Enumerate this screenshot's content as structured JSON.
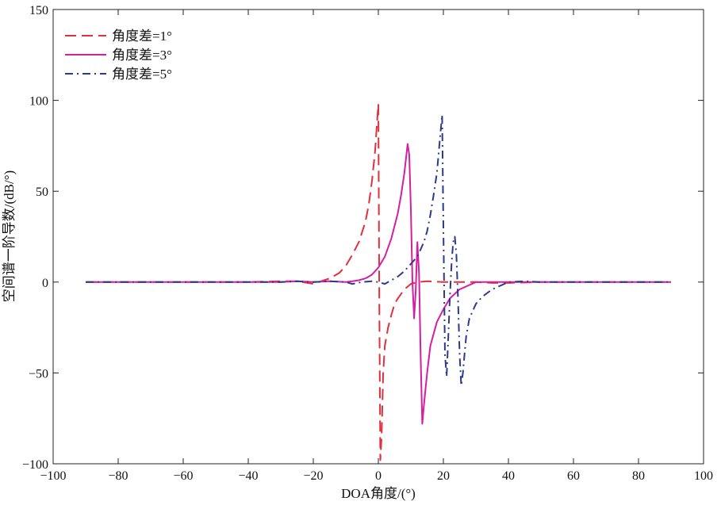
{
  "chart_data": {
    "type": "line",
    "xlabel": "DOA角度/(°)",
    "ylabel": "空间谱一阶导数/(dB/°)",
    "xlim": [
      -100,
      100
    ],
    "ylim": [
      -100,
      150
    ],
    "xticks": [
      -100,
      -80,
      -60,
      -40,
      -20,
      0,
      20,
      40,
      60,
      80,
      100
    ],
    "yticks": [
      -100,
      -50,
      0,
      50,
      100,
      150
    ],
    "grid": false,
    "legend_position": "top-left",
    "series": [
      {
        "name": "角度差=1°",
        "color": "#e0303c",
        "dash": "dashed",
        "x": [
          -90,
          -60,
          -40,
          -30,
          -25,
          -20,
          -15,
          -12,
          -10,
          -8,
          -6,
          -4,
          -3,
          -2,
          -1,
          -0.5,
          0,
          0.3,
          0.6,
          1,
          1.5,
          2,
          3,
          4,
          5,
          6,
          8,
          10,
          12,
          15,
          20,
          25,
          30,
          35,
          40,
          50,
          60,
          70,
          80,
          90
        ],
        "y": [
          0,
          0,
          0,
          0.5,
          0.5,
          -1,
          2,
          5,
          9,
          15,
          22,
          33,
          42,
          55,
          72,
          85,
          98,
          -10,
          -98,
          -85,
          -50,
          -35,
          -25,
          -18,
          -12,
          -9,
          -4,
          -1,
          0,
          0.5,
          0,
          0,
          0,
          -0.5,
          -0.5,
          0,
          0,
          0,
          0,
          0
        ]
      },
      {
        "name": "角度差=3°",
        "color": "#d61fa0",
        "dash": "solid",
        "x": [
          -90,
          -60,
          -40,
          -30,
          -25,
          -20,
          -15,
          -10,
          -8,
          -6,
          -4,
          -2,
          0,
          2,
          4,
          6,
          7,
          8,
          9,
          9.5,
          10,
          10.5,
          11,
          11.5,
          12,
          12.5,
          13,
          13.5,
          14,
          15,
          16,
          18,
          20,
          22,
          25,
          30,
          35,
          40,
          50,
          60,
          70,
          80,
          90
        ],
        "y": [
          0,
          0,
          0,
          0,
          0.5,
          0,
          0.5,
          0,
          0.5,
          1,
          2,
          4,
          8,
          14,
          24,
          38,
          48,
          60,
          76,
          70,
          40,
          0,
          -20,
          -5,
          22,
          5,
          -40,
          -78,
          -68,
          -50,
          -35,
          -22,
          -15,
          -9,
          -4,
          0,
          0,
          0,
          0,
          0,
          0,
          0,
          0
        ]
      },
      {
        "name": "角度差=5°",
        "color": "#2b3a8c",
        "dash": "dashdot",
        "x": [
          -90,
          -60,
          -40,
          -30,
          -25,
          -20,
          -15,
          -10,
          -8,
          -5,
          -2,
          0,
          2,
          4,
          6,
          8,
          10,
          12,
          14,
          15,
          16,
          17,
          18,
          19,
          19.6,
          20,
          20.5,
          21,
          21.5,
          22,
          22.5,
          23,
          23.5,
          24,
          24.5,
          25,
          25.5,
          26,
          26.5,
          27,
          28,
          30,
          32,
          35,
          40,
          45,
          50,
          60,
          70,
          80,
          90
        ],
        "y": [
          0,
          0,
          0,
          0,
          0.5,
          0,
          0.5,
          0,
          -1,
          0,
          0.5,
          0,
          -1,
          1,
          3,
          6,
          10,
          14,
          22,
          28,
          37,
          48,
          60,
          80,
          92,
          30,
          -40,
          -52,
          -30,
          -8,
          10,
          22,
          25,
          15,
          -10,
          -40,
          -57,
          -50,
          -40,
          -30,
          -20,
          -12,
          -8,
          -4,
          0,
          0.5,
          0,
          0,
          0,
          0,
          0
        ]
      }
    ]
  }
}
